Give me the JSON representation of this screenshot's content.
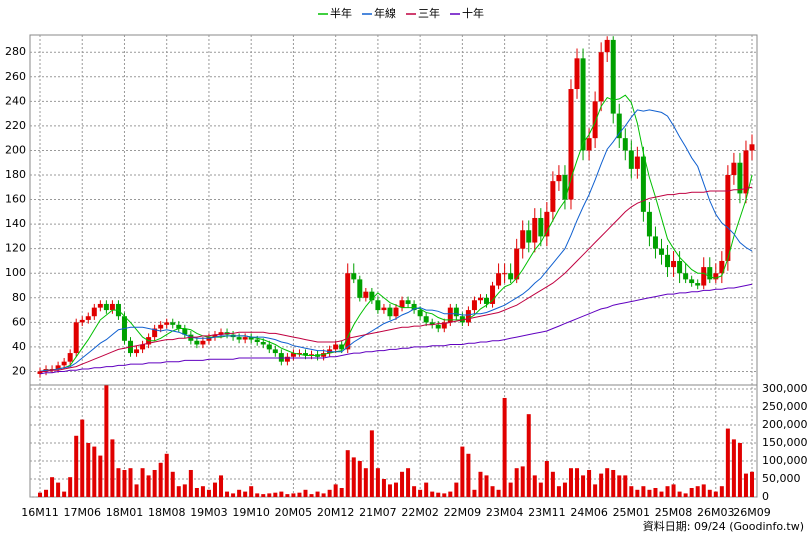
{
  "chart_data": {
    "type": "candlestick",
    "categories": [
      "16M11",
      null,
      null,
      null,
      null,
      null,
      null,
      "17M06",
      null,
      null,
      null,
      null,
      null,
      null,
      "18M01",
      null,
      null,
      null,
      null,
      null,
      null,
      "18M08",
      null,
      null,
      null,
      null,
      null,
      null,
      "19M03",
      null,
      null,
      null,
      null,
      null,
      null,
      "19M10",
      null,
      null,
      null,
      null,
      null,
      null,
      "20M05",
      null,
      null,
      null,
      null,
      null,
      null,
      "20M12",
      null,
      null,
      null,
      null,
      null,
      null,
      "21M07",
      null,
      null,
      null,
      null,
      null,
      null,
      "22M02",
      null,
      null,
      null,
      null,
      null,
      null,
      "22M09",
      null,
      null,
      null,
      null,
      null,
      null,
      "23M04",
      null,
      null,
      null,
      null,
      null,
      null,
      "23M11",
      null,
      null,
      null,
      null,
      null,
      null,
      "24M06",
      null,
      null,
      null,
      null,
      null,
      null,
      "25M01",
      null,
      null,
      null,
      null,
      null,
      null,
      "25M08",
      null,
      null,
      null,
      null,
      null,
      null,
      "26M03",
      null,
      null,
      null,
      null,
      null,
      "26M09"
    ],
    "open": [
      18,
      20,
      22,
      22,
      25,
      28,
      35,
      60,
      62,
      65,
      72,
      75,
      70,
      75,
      65,
      45,
      35,
      38,
      42,
      48,
      55,
      58,
      60,
      58,
      55,
      50,
      45,
      42,
      45,
      48,
      50,
      52,
      50,
      48,
      46,
      48,
      46,
      44,
      42,
      38,
      35,
      28,
      32,
      35,
      35,
      33,
      34,
      32,
      35,
      38,
      42,
      38,
      100,
      95,
      80,
      85,
      78,
      70,
      72,
      65,
      72,
      78,
      75,
      70,
      65,
      60,
      58,
      55,
      60,
      72,
      65,
      60,
      70,
      78,
      80,
      75,
      90,
      100,
      100,
      95,
      120,
      135,
      125,
      145,
      130,
      150,
      175,
      180,
      160,
      250,
      275,
      200,
      210,
      240,
      280,
      290,
      230,
      210,
      200,
      185,
      195,
      150,
      130,
      120,
      115,
      105,
      110,
      100,
      95,
      92,
      90,
      105,
      95,
      100,
      110,
      180,
      190,
      165,
      200
    ],
    "high": [
      23,
      25,
      25,
      28,
      31,
      38,
      63,
      65,
      68,
      75,
      78,
      78,
      78,
      78,
      68,
      48,
      41,
      45,
      51,
      58,
      61,
      63,
      63,
      61,
      58,
      53,
      48,
      48,
      51,
      53,
      55,
      55,
      53,
      51,
      51,
      51,
      49,
      47,
      45,
      41,
      38,
      35,
      38,
      38,
      38,
      37,
      37,
      38,
      41,
      45,
      45,
      108,
      108,
      98,
      88,
      88,
      81,
      75,
      75,
      75,
      81,
      81,
      78,
      73,
      68,
      63,
      61,
      63,
      75,
      75,
      68,
      73,
      81,
      83,
      83,
      93,
      108,
      108,
      108,
      128,
      143,
      143,
      153,
      153,
      158,
      183,
      188,
      188,
      258,
      283,
      283,
      218,
      248,
      288,
      293,
      293,
      238,
      218,
      208,
      203,
      203,
      158,
      138,
      128,
      123,
      118,
      118,
      108,
      98,
      95,
      113,
      113,
      108,
      118,
      188,
      198,
      198,
      208,
      213
    ],
    "low": [
      15,
      17,
      19,
      19,
      22,
      25,
      32,
      57,
      59,
      62,
      69,
      67,
      67,
      62,
      42,
      32,
      32,
      35,
      39,
      45,
      52,
      55,
      55,
      52,
      47,
      42,
      39,
      39,
      42,
      45,
      47,
      47,
      45,
      43,
      43,
      43,
      41,
      39,
      35,
      32,
      25,
      25,
      29,
      32,
      30,
      30,
      29,
      29,
      32,
      35,
      35,
      35,
      92,
      77,
      77,
      75,
      67,
      67,
      62,
      62,
      69,
      72,
      67,
      62,
      57,
      55,
      52,
      52,
      57,
      62,
      57,
      57,
      67,
      75,
      72,
      72,
      87,
      92,
      92,
      92,
      112,
      117,
      117,
      122,
      122,
      142,
      167,
      152,
      152,
      242,
      192,
      192,
      202,
      232,
      272,
      222,
      202,
      192,
      177,
      177,
      142,
      122,
      112,
      107,
      97,
      97,
      92,
      92,
      89,
      87,
      87,
      92,
      92,
      92,
      102,
      172,
      157,
      157,
      192
    ],
    "close": [
      20,
      22,
      22,
      25,
      28,
      35,
      60,
      62,
      65,
      72,
      75,
      70,
      75,
      65,
      45,
      35,
      38,
      42,
      48,
      55,
      58,
      60,
      58,
      55,
      50,
      45,
      42,
      45,
      48,
      50,
      52,
      50,
      48,
      46,
      48,
      46,
      44,
      42,
      38,
      35,
      28,
      32,
      35,
      35,
      33,
      34,
      32,
      35,
      38,
      42,
      38,
      100,
      95,
      80,
      85,
      78,
      70,
      72,
      65,
      72,
      78,
      75,
      70,
      65,
      60,
      58,
      55,
      60,
      72,
      65,
      60,
      70,
      78,
      80,
      75,
      90,
      100,
      100,
      95,
      120,
      135,
      125,
      145,
      130,
      150,
      175,
      180,
      160,
      250,
      275,
      200,
      210,
      240,
      280,
      290,
      230,
      210,
      200,
      185,
      195,
      150,
      130,
      120,
      115,
      105,
      110,
      100,
      95,
      92,
      90,
      105,
      95,
      100,
      110,
      180,
      190,
      165,
      200,
      205
    ],
    "up_color": "#e00000",
    "down_color": "#00a000",
    "series": [
      {
        "name": "半年",
        "color": "#00c000",
        "values": [
          20,
          21,
          21,
          22,
          23,
          25,
          32,
          39,
          46,
          54,
          62,
          66,
          70,
          70,
          65,
          60,
          54,
          48,
          45,
          45,
          47,
          50,
          53,
          55,
          55,
          54,
          51,
          49,
          48,
          48,
          48,
          49,
          49,
          49,
          49,
          48,
          47,
          46,
          44,
          42,
          39,
          37,
          35,
          34,
          33,
          33,
          33,
          34,
          35,
          36,
          37,
          48,
          58,
          66,
          73,
          79,
          84,
          80,
          76,
          74,
          72,
          72,
          72,
          71,
          68,
          67,
          64,
          62,
          62,
          62,
          62,
          63,
          66,
          71,
          74,
          78,
          84,
          89,
          91,
          96,
          103,
          111,
          119,
          125,
          134,
          143,
          152,
          159,
          177,
          192,
          206,
          213,
          223,
          236,
          243,
          241,
          242,
          245,
          239,
          222,
          198,
          178,
          162,
          145,
          128,
          120,
          113,
          108,
          103,
          100,
          100,
          97,
          96,
          98,
          112,
          130,
          145,
          160,
          180
        ]
      },
      {
        "name": "年線",
        "color": "#1060d0",
        "values": [
          20,
          21,
          21,
          22,
          23,
          24,
          27,
          31,
          35,
          39,
          43,
          46,
          50,
          54,
          55,
          56,
          56,
          56,
          55,
          54,
          53,
          54,
          53,
          52,
          50,
          48,
          47,
          47,
          47,
          48,
          49,
          49,
          49,
          49,
          49,
          48,
          48,
          48,
          47,
          46,
          44,
          43,
          41,
          40,
          39,
          38,
          37,
          37,
          36,
          36,
          36,
          40,
          44,
          47,
          50,
          53,
          56,
          59,
          61,
          63,
          66,
          68,
          71,
          72,
          70,
          70,
          69,
          67,
          67,
          67,
          66,
          66,
          67,
          67,
          68,
          70,
          72,
          74,
          77,
          80,
          83,
          87,
          92,
          96,
          102,
          108,
          114,
          120,
          131,
          143,
          154,
          164,
          176,
          189,
          201,
          207,
          214,
          220,
          227,
          233,
          232,
          233,
          232,
          231,
          228,
          220,
          211,
          203,
          194,
          187,
          173,
          159,
          148,
          141,
          137,
          132,
          125,
          121,
          118
        ]
      },
      {
        "name": "三年",
        "color": "#c00040",
        "values": [
          20,
          20,
          21,
          21,
          22,
          23,
          24,
          26,
          28,
          30,
          32,
          34,
          36,
          38,
          39,
          40,
          41,
          42,
          43,
          44,
          45,
          46,
          46,
          47,
          47,
          48,
          48,
          49,
          49,
          50,
          50,
          51,
          51,
          52,
          52,
          52,
          52,
          52,
          51,
          51,
          50,
          49,
          48,
          47,
          46,
          45,
          44,
          44,
          44,
          44,
          45,
          47,
          48,
          49,
          50,
          51,
          52,
          53,
          54,
          55,
          56,
          56,
          57,
          57,
          58,
          58,
          59,
          59,
          60,
          61,
          62,
          63,
          64,
          65,
          66,
          67,
          68,
          70,
          72,
          74,
          77,
          80,
          83,
          86,
          89,
          92,
          96,
          100,
          105,
          110,
          115,
          120,
          125,
          130,
          135,
          140,
          145,
          150,
          154,
          157,
          159,
          161,
          162,
          163,
          164,
          164,
          165,
          165,
          166,
          166,
          166,
          167,
          167,
          167,
          167,
          168,
          168,
          169,
          170
        ]
      },
      {
        "name": "十年",
        "color": "#6000c0",
        "values": [
          18,
          19,
          19,
          20,
          20,
          21,
          21,
          22,
          22,
          23,
          23,
          24,
          24,
          25,
          25,
          26,
          26,
          26,
          27,
          27,
          27,
          28,
          28,
          28,
          29,
          29,
          29,
          29,
          30,
          30,
          30,
          30,
          30,
          31,
          31,
          31,
          31,
          31,
          31,
          31,
          31,
          31,
          31,
          31,
          31,
          31,
          31,
          31,
          32,
          32,
          33,
          34,
          35,
          35,
          36,
          36,
          37,
          37,
          38,
          38,
          39,
          39,
          40,
          40,
          40,
          41,
          41,
          41,
          42,
          42,
          42,
          43,
          43,
          44,
          44,
          45,
          45,
          46,
          47,
          48,
          49,
          50,
          51,
          52,
          53,
          55,
          57,
          59,
          61,
          63,
          65,
          67,
          69,
          71,
          72,
          74,
          75,
          76,
          77,
          78,
          79,
          80,
          81,
          82,
          83,
          83,
          84,
          84,
          85,
          85,
          86,
          86,
          87,
          87,
          88,
          88,
          89,
          90,
          91
        ]
      }
    ],
    "ylim": [
      9,
      294
    ],
    "yticks": [
      20,
      40,
      60,
      80,
      100,
      120,
      140,
      160,
      180,
      200,
      220,
      240,
      260,
      280
    ],
    "grid": true,
    "volume": {
      "color": "#e00000",
      "values": [
        12000,
        20000,
        55000,
        40000,
        15000,
        55000,
        170000,
        215000,
        150000,
        140000,
        115000,
        310000,
        160000,
        80000,
        75000,
        80000,
        35000,
        80000,
        60000,
        75000,
        95000,
        120000,
        70000,
        30000,
        35000,
        75000,
        25000,
        30000,
        20000,
        40000,
        60000,
        15000,
        10000,
        20000,
        15000,
        30000,
        10000,
        8000,
        10000,
        12000,
        15000,
        8000,
        10000,
        12000,
        20000,
        8000,
        15000,
        10000,
        20000,
        35000,
        25000,
        130000,
        110000,
        100000,
        80000,
        185000,
        80000,
        50000,
        35000,
        40000,
        70000,
        80000,
        30000,
        20000,
        40000,
        15000,
        12000,
        10000,
        15000,
        40000,
        140000,
        120000,
        20000,
        70000,
        60000,
        30000,
        20000,
        275000,
        40000,
        80000,
        85000,
        230000,
        60000,
        40000,
        100000,
        70000,
        30000,
        40000,
        80000,
        80000,
        60000,
        75000,
        35000,
        65000,
        80000,
        75000,
        60000,
        60000,
        30000,
        20000,
        30000,
        20000,
        25000,
        15000,
        30000,
        35000,
        15000,
        10000,
        25000,
        30000,
        35000,
        20000,
        15000,
        30000,
        190000,
        160000,
        150000,
        65000,
        70000
      ],
      "ylim": [
        0,
        311000
      ],
      "yticks": [
        0,
        {
          "value": 50000,
          "label": "50,000"
        },
        {
          "value": 100000,
          "label": "100,000"
        },
        {
          "value": 150000,
          "label": "150,000"
        },
        {
          "value": 200000,
          "label": "200,000"
        },
        {
          "value": 250000,
          "label": "250,000"
        },
        {
          "value": 300000,
          "label": "300,000"
        }
      ]
    },
    "note": "資料日期: 09/24 (Goodinfo.tw)"
  }
}
